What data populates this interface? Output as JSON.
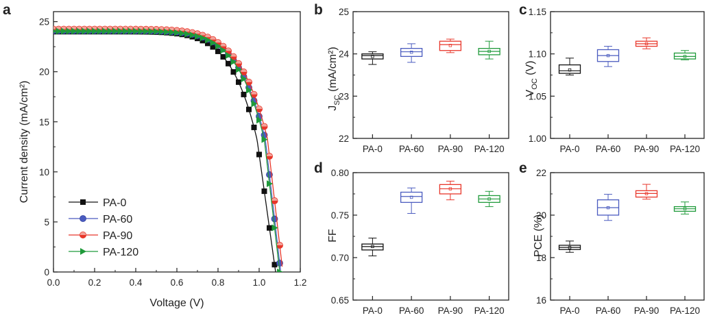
{
  "colors": {
    "PA-0": "#111111",
    "PA-60": "#4a5bbf",
    "PA-90": "#e8362a",
    "PA-120": "#1f9a3a",
    "PA-90_fill": "#f2a29a"
  },
  "chart_data": [
    {
      "id": "a",
      "type": "line",
      "panel_letter": "a",
      "xlabel": "Voltage (V)",
      "ylabel": "Current density (mA/cm²)",
      "xlim": [
        0,
        1.2
      ],
      "ylim": [
        0,
        26
      ],
      "xticks": [
        "0.0",
        "0.2",
        "0.4",
        "0.6",
        "0.8",
        "1.0",
        "1.2"
      ],
      "yticks": [
        "0",
        "5",
        "10",
        "15",
        "20",
        "25"
      ],
      "legend_position": "bottom-left",
      "series": [
        {
          "name": "PA-0",
          "marker": "square",
          "voc": 1.08,
          "jsc": 24.0,
          "vk": 0.99,
          "n": 8
        },
        {
          "name": "PA-60",
          "marker": "circle",
          "voc": 1.105,
          "jsc": 24.1,
          "vk": 1.03,
          "n": 8
        },
        {
          "name": "PA-90",
          "marker": "circle-half",
          "voc": 1.115,
          "jsc": 24.25,
          "vk": 1.04,
          "n": 8
        },
        {
          "name": "PA-120",
          "marker": "triangle-right",
          "voc": 1.1,
          "jsc": 24.05,
          "vk": 1.025,
          "n": 8
        }
      ]
    },
    {
      "id": "b",
      "type": "box",
      "panel_letter": "b",
      "ylabel": "J_SC (mA/cm²)",
      "ylim": [
        22,
        25
      ],
      "yticks": [
        "22",
        "23",
        "24",
        "25"
      ],
      "categories": [
        "PA-0",
        "PA-60",
        "PA-90",
        "PA-120"
      ],
      "boxes": [
        {
          "name": "PA-0",
          "min": 23.75,
          "q1": 23.88,
          "median": 23.96,
          "mean": 23.94,
          "q3": 24.0,
          "max": 24.05
        },
        {
          "name": "PA-60",
          "min": 23.8,
          "q1": 23.94,
          "median": 24.05,
          "mean": 24.04,
          "q3": 24.13,
          "max": 24.24
        },
        {
          "name": "PA-90",
          "min": 24.03,
          "q1": 24.08,
          "median": 24.22,
          "mean": 24.2,
          "q3": 24.3,
          "max": 24.35
        },
        {
          "name": "PA-120",
          "min": 23.88,
          "q1": 23.98,
          "median": 24.06,
          "mean": 24.06,
          "q3": 24.13,
          "max": 24.3
        }
      ]
    },
    {
      "id": "c",
      "type": "box",
      "panel_letter": "c",
      "ylabel": "V_OC (V)",
      "ylim": [
        1.0,
        1.15
      ],
      "yticks": [
        "1.00",
        "1.05",
        "1.10",
        "1.15"
      ],
      "categories": [
        "PA-0",
        "PA-60",
        "PA-90",
        "PA-120"
      ],
      "boxes": [
        {
          "name": "PA-0",
          "min": 1.075,
          "q1": 1.077,
          "median": 1.08,
          "mean": 1.081,
          "q3": 1.087,
          "max": 1.095
        },
        {
          "name": "PA-60",
          "min": 1.085,
          "q1": 1.091,
          "median": 1.098,
          "mean": 1.098,
          "q3": 1.105,
          "max": 1.109
        },
        {
          "name": "PA-90",
          "min": 1.106,
          "q1": 1.109,
          "median": 1.112,
          "mean": 1.112,
          "q3": 1.115,
          "max": 1.119
        },
        {
          "name": "PA-120",
          "min": 1.093,
          "q1": 1.094,
          "median": 1.097,
          "mean": 1.097,
          "q3": 1.101,
          "max": 1.104
        }
      ]
    },
    {
      "id": "d",
      "type": "box",
      "panel_letter": "d",
      "ylabel": "FF",
      "ylim": [
        0.65,
        0.8
      ],
      "yticks": [
        "0.65",
        "0.70",
        "0.75",
        "0.80"
      ],
      "categories": [
        "PA-0",
        "PA-60",
        "PA-90",
        "PA-120"
      ],
      "boxes": [
        {
          "name": "PA-0",
          "min": 0.702,
          "q1": 0.709,
          "median": 0.713,
          "mean": 0.713,
          "q3": 0.716,
          "max": 0.723
        },
        {
          "name": "PA-60",
          "min": 0.752,
          "q1": 0.765,
          "median": 0.772,
          "mean": 0.771,
          "q3": 0.777,
          "max": 0.782
        },
        {
          "name": "PA-90",
          "min": 0.768,
          "q1": 0.775,
          "median": 0.781,
          "mean": 0.781,
          "q3": 0.786,
          "max": 0.79
        },
        {
          "name": "PA-120",
          "min": 0.76,
          "q1": 0.765,
          "median": 0.769,
          "mean": 0.769,
          "q3": 0.773,
          "max": 0.778
        }
      ]
    },
    {
      "id": "e",
      "type": "box",
      "panel_letter": "e",
      "ylabel": "PCE (%)",
      "ylim": [
        16,
        22
      ],
      "yticks": [
        "16",
        "18",
        "20",
        "22"
      ],
      "categories": [
        "PA-0",
        "PA-60",
        "PA-90",
        "PA-120"
      ],
      "boxes": [
        {
          "name": "PA-0",
          "min": 18.25,
          "q1": 18.38,
          "median": 18.48,
          "mean": 18.47,
          "q3": 18.58,
          "max": 18.78
        },
        {
          "name": "PA-60",
          "min": 19.75,
          "q1": 20.0,
          "median": 20.35,
          "mean": 20.35,
          "q3": 20.72,
          "max": 20.98
        },
        {
          "name": "PA-90",
          "min": 20.75,
          "q1": 20.85,
          "median": 21.02,
          "mean": 21.01,
          "q3": 21.15,
          "max": 21.45
        },
        {
          "name": "PA-120",
          "min": 20.05,
          "q1": 20.18,
          "median": 20.3,
          "mean": 20.3,
          "q3": 20.4,
          "max": 20.62
        }
      ]
    }
  ]
}
